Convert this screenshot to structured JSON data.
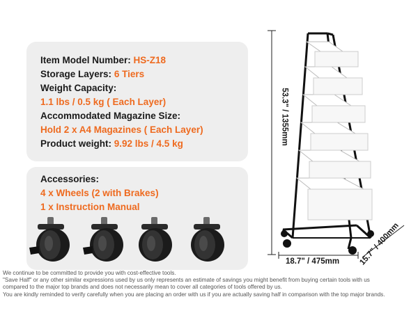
{
  "specs": {
    "model_label": "Item Model Number:",
    "model_value": "HS-Z18",
    "layers_label": "Storage Layers:",
    "layers_value": "6 Tiers",
    "capacity_label": "Weight Capacity:",
    "capacity_value": "1.1 lbs / 0.5 kg ( Each Layer)",
    "magazine_label": "Accommodated Magazine Size:",
    "magazine_value": "Hold 2 x A4 Magazines ( Each Layer)",
    "weight_label": "Product weight:",
    "weight_value": "9.92 lbs / 4.5 kg"
  },
  "accessories": {
    "title": "Accessories:",
    "items": [
      "4 x Wheels (2 with Brakes)",
      "1 x Instruction Manual"
    ]
  },
  "dimensions": {
    "height": "53.3\" / 1355mm",
    "width": "18.7\" / 475mm",
    "depth": "15.7\" / 400mm"
  },
  "disclaimer": [
    "We continue to be committed to provide you with cost-effective tools.",
    "\"Save Half\" or any other similar expressions used by us only represents an estimate of savings you might benefit from buying certain tools with us",
    "compared to the major top brands and does not necessarily mean to cover all categories of tools offered by us.",
    "You are kindly reminded to verify carefully when you are placing an order with us if you are actually saving half in comparison with the top major brands."
  ],
  "colors": {
    "accent": "#ee6a1f",
    "panel": "#eeeeee",
    "text": "#1a1a1a"
  }
}
